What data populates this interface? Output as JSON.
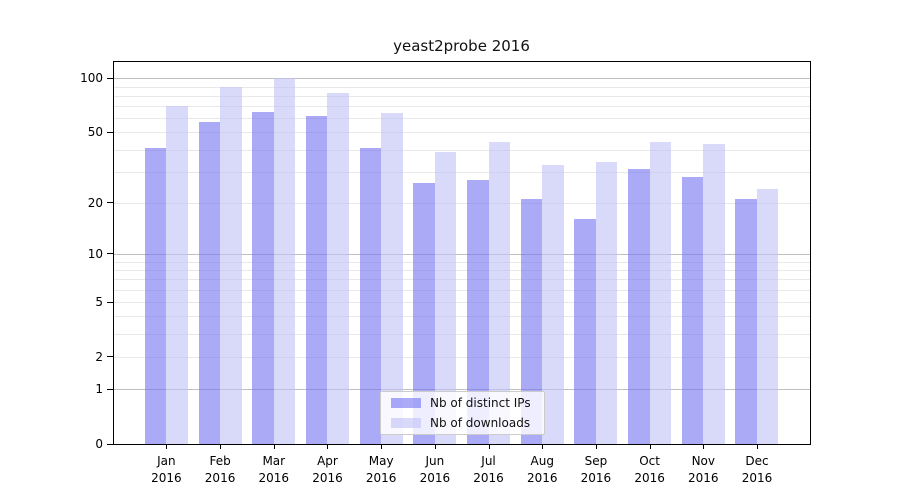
{
  "title": "yeast2probe 2016",
  "legend": {
    "items": [
      {
        "label": "Nb of distinct IPs",
        "color": "rgba(113,113,241,0.6)"
      },
      {
        "label": "Nb of downloads",
        "color": "rgba(192,192,246,0.6)"
      }
    ]
  },
  "chart_data": {
    "type": "bar",
    "title": "yeast2probe 2016",
    "categories": [
      "Jan 2016",
      "Feb 2016",
      "Mar 2016",
      "Apr 2016",
      "May 2016",
      "Jun 2016",
      "Jul 2016",
      "Aug 2016",
      "Sep 2016",
      "Oct 2016",
      "Nov 2016",
      "Dec 2016"
    ],
    "series": [
      {
        "name": "Nb of distinct IPs",
        "color": "rgba(113,113,241,0.6)",
        "values": [
          41,
          57,
          65,
          62,
          41,
          26,
          27,
          21,
          16,
          31,
          28,
          21
        ]
      },
      {
        "name": "Nb of downloads",
        "color": "rgba(192,192,246,0.6)",
        "values": [
          70,
          89,
          100,
          83,
          64,
          39,
          44,
          33,
          34,
          44,
          43,
          24
        ]
      }
    ],
    "xlabel": "",
    "ylabel": "",
    "yscale": "log1p",
    "ylim": [
      0,
      125
    ],
    "y_ticks": [
      100,
      50,
      20,
      10,
      5,
      2,
      1,
      0
    ],
    "y_major_gridlines": [
      1,
      10,
      100
    ],
    "y_minor_gridlines": [
      2,
      3,
      4,
      5,
      6,
      7,
      8,
      9,
      20,
      30,
      40,
      50,
      60,
      70,
      80,
      90
    ],
    "grid": true,
    "legend_position": "lower center"
  },
  "colors": {
    "bar_distinct_ips": "rgba(113,113,241,0.6)",
    "bar_downloads": "rgba(192,192,246,0.6)",
    "gridline_major": "#c0c0c0",
    "gridline_minor": "#e8e8e8",
    "spine": "#000000",
    "legend_border": "#cccccc"
  }
}
